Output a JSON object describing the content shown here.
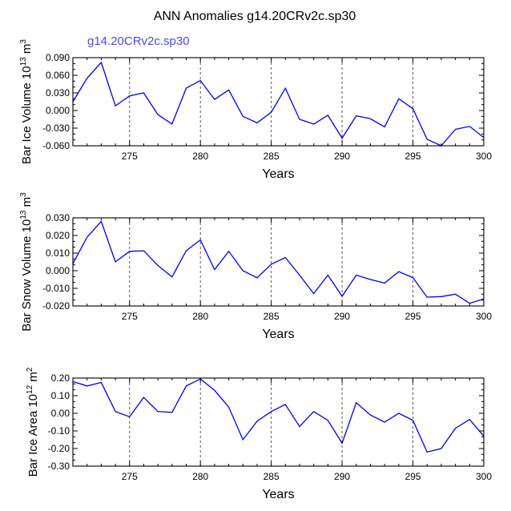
{
  "title": "ANN Anomalies g14.20CRv2c.sp30",
  "colors": {
    "line": "#0000ee",
    "case_label": "#4a4ae6",
    "axis": "#000000",
    "grid": "#555555"
  },
  "chart_data": [
    {
      "type": "line",
      "name": "bar-ice-volume",
      "case_label": "g14.20CRv2c.sp30",
      "ylabel_prefix": "Bar Ice Volume 10",
      "ylabel_exp": "13",
      "ylabel_unit": " m",
      "ylabel_unit_exp": "3",
      "xlabel": "Years",
      "xlim": [
        271,
        300
      ],
      "ylim": [
        -0.06,
        0.09
      ],
      "xticks": [
        275,
        280,
        285,
        290,
        295,
        300
      ],
      "xtick_labels": [
        "275",
        "280",
        "285",
        "290",
        "295",
        "300"
      ],
      "yticks": [
        0.09,
        0.06,
        0.03,
        0.0,
        -0.03,
        -0.06
      ],
      "ytick_labels": [
        "0.090",
        "0.060",
        "0.030",
        "0.000",
        "-0.030",
        "-0.060"
      ],
      "x": [
        271,
        272,
        273,
        274,
        275,
        276,
        277,
        278,
        279,
        280,
        281,
        282,
        283,
        284,
        285,
        286,
        287,
        288,
        289,
        290,
        291,
        292,
        293,
        294,
        295,
        296,
        297,
        298,
        299,
        300
      ],
      "values": [
        0.015,
        0.055,
        0.082,
        0.008,
        0.025,
        0.03,
        -0.007,
        -0.023,
        0.038,
        0.051,
        0.019,
        0.035,
        -0.01,
        -0.021,
        -0.003,
        0.038,
        -0.015,
        -0.023,
        -0.008,
        -0.047,
        -0.009,
        -0.014,
        -0.028,
        0.02,
        0.003,
        -0.049,
        -0.06,
        -0.032,
        -0.027,
        -0.046
      ]
    },
    {
      "type": "line",
      "name": "bar-snow-volume",
      "ylabel_prefix": "Bar Snow Volume 10",
      "ylabel_exp": "13",
      "ylabel_unit": " m",
      "ylabel_unit_exp": "3",
      "xlabel": "Years",
      "xlim": [
        271,
        300
      ],
      "ylim": [
        -0.02,
        0.03
      ],
      "xticks": [
        275,
        280,
        285,
        290,
        295,
        300
      ],
      "xtick_labels": [
        "275",
        "280",
        "285",
        "290",
        "295",
        "300"
      ],
      "yticks": [
        0.03,
        0.02,
        0.01,
        0.0,
        -0.01,
        -0.02
      ],
      "ytick_labels": [
        "0.030",
        "0.020",
        "0.010",
        "0.000",
        "-0.010",
        "-0.020"
      ],
      "x": [
        271,
        272,
        273,
        274,
        275,
        276,
        277,
        278,
        279,
        280,
        281,
        282,
        283,
        284,
        285,
        286,
        287,
        288,
        289,
        290,
        291,
        292,
        293,
        294,
        295,
        296,
        297,
        298,
        299,
        300
      ],
      "values": [
        0.004,
        0.019,
        0.028,
        0.005,
        0.011,
        0.0113,
        0.003,
        -0.0035,
        0.0113,
        0.0175,
        0.0006,
        0.011,
        0.0,
        -0.004,
        0.0037,
        0.0075,
        -0.0025,
        -0.013,
        -0.0025,
        -0.0145,
        -0.0025,
        -0.005,
        -0.007,
        -0.0005,
        -0.004,
        -0.015,
        -0.0147,
        -0.0133,
        -0.0185,
        -0.016
      ]
    },
    {
      "type": "line",
      "name": "bar-ice-area",
      "ylabel_prefix": "Bar Ice Area 10",
      "ylabel_exp": "12",
      "ylabel_unit": " m",
      "ylabel_unit_exp": "2",
      "xlabel": "Years",
      "xlim": [
        271,
        300
      ],
      "ylim": [
        -0.3,
        0.2
      ],
      "xticks": [
        275,
        280,
        285,
        290,
        295,
        300
      ],
      "xtick_labels": [
        "275",
        "280",
        "285",
        "290",
        "295",
        "300"
      ],
      "yticks": [
        0.2,
        0.1,
        0.0,
        -0.1,
        -0.2,
        -0.3
      ],
      "ytick_labels": [
        "0.20",
        "0.10",
        "0.00",
        "-0.10",
        "-0.20",
        "-0.30"
      ],
      "x": [
        271,
        272,
        273,
        274,
        275,
        276,
        277,
        278,
        279,
        280,
        281,
        282,
        283,
        284,
        285,
        286,
        287,
        288,
        289,
        290,
        291,
        292,
        293,
        294,
        295,
        296,
        297,
        298,
        299,
        300
      ],
      "values": [
        0.18,
        0.155,
        0.175,
        0.01,
        -0.02,
        0.09,
        0.01,
        0.005,
        0.155,
        0.195,
        0.13,
        0.035,
        -0.15,
        -0.045,
        0.01,
        0.05,
        -0.075,
        0.01,
        -0.04,
        -0.17,
        0.06,
        -0.01,
        -0.05,
        0.0,
        -0.04,
        -0.22,
        -0.2,
        -0.085,
        -0.035,
        -0.13
      ]
    }
  ]
}
